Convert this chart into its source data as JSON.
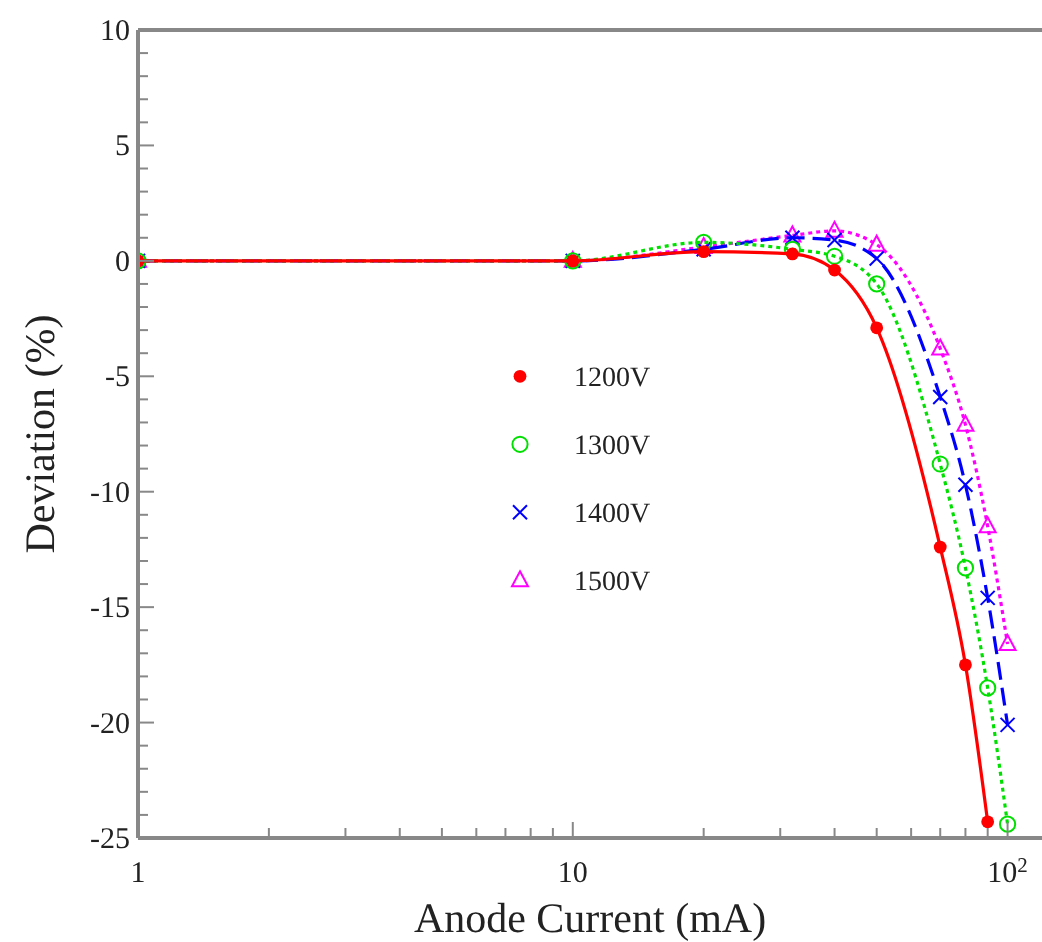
{
  "chart_data": {
    "type": "line",
    "xlabel": "Anode Current (mA)",
    "ylabel": "Deviation (%)",
    "log": "x",
    "xlim": [
      1,
      120
    ],
    "ylim": [
      -25,
      10
    ],
    "xticks": [
      1,
      {
        "value": 2,
        "label": null
      },
      {
        "value": 3,
        "label": null
      },
      {
        "value": 4,
        "label": null
      },
      {
        "value": 5,
        "label": null
      },
      {
        "value": 6,
        "label": null
      },
      {
        "value": 7,
        "label": null
      },
      {
        "value": 8,
        "label": null
      },
      {
        "value": 9,
        "label": null
      },
      10,
      {
        "value": 20,
        "label": null
      },
      {
        "value": 30,
        "label": null
      },
      {
        "value": 40,
        "label": null
      },
      {
        "value": 50,
        "label": null
      },
      {
        "value": 60,
        "label": null
      },
      {
        "value": 70,
        "label": null
      },
      {
        "value": 80,
        "label": null
      },
      {
        "value": 90,
        "label": null
      },
      {
        "value": 100,
        "label": "10$^{2}$"
      }
    ],
    "yticks": [
      -25,
      {
        "value": -24,
        "label": null
      },
      {
        "value": -23,
        "label": null
      },
      {
        "value": -22,
        "label": null
      },
      {
        "value": -21,
        "label": null
      },
      -20,
      {
        "value": -19,
        "label": null
      },
      {
        "value": -18,
        "label": null
      },
      {
        "value": -17,
        "label": null
      },
      {
        "value": -16,
        "label": null
      },
      -15,
      {
        "value": -14,
        "label": null
      },
      {
        "value": -13,
        "label": null
      },
      {
        "value": -12,
        "label": null
      },
      {
        "value": -11,
        "label": null
      },
      -10,
      {
        "value": -9,
        "label": null
      },
      {
        "value": -8,
        "label": null
      },
      {
        "value": -7,
        "label": null
      },
      {
        "value": -6,
        "label": null
      },
      -5,
      {
        "value": -4,
        "label": null
      },
      {
        "value": -3,
        "label": null
      },
      {
        "value": -2,
        "label": null
      },
      {
        "value": -1,
        "label": null
      },
      0,
      {
        "value": 1,
        "label": null
      },
      {
        "value": 2,
        "label": null
      },
      {
        "value": 3,
        "label": null
      },
      {
        "value": 4,
        "label": null
      },
      5,
      {
        "value": 6,
        "label": null
      },
      {
        "value": 7,
        "label": null
      },
      {
        "value": 8,
        "label": null
      },
      {
        "value": 9,
        "label": null
      },
      10
    ],
    "grid": false,
    "legend": "left",
    "series": [
      {
        "name": "1200V",
        "color": "#ff0000",
        "marker": "circle",
        "line_style": "solid",
        "x": [
          1,
          10,
          20,
          32,
          40,
          50,
          70,
          80,
          90
        ],
        "values": [
          0,
          0,
          0.4,
          0.3,
          -0.4,
          -2.9,
          -12.4,
          -17.5,
          -24.3
        ]
      },
      {
        "name": "1300V",
        "color": "#00e000",
        "marker": "circle-open",
        "line_style": "dotted",
        "x": [
          1,
          10,
          20,
          32,
          40,
          50,
          70,
          80,
          90,
          100
        ],
        "values": [
          0,
          0,
          0.8,
          0.5,
          0.2,
          -1.0,
          -8.8,
          -13.3,
          -18.5,
          -24.4
        ]
      },
      {
        "name": "1400V",
        "color": "#0000ff",
        "marker": "cross",
        "line_style": "dashed",
        "x": [
          1,
          10,
          20,
          32,
          40,
          50,
          70,
          80,
          90,
          100
        ],
        "values": [
          0,
          0,
          0.5,
          1.0,
          0.9,
          0.1,
          -5.9,
          -9.7,
          -14.6,
          -20.1
        ]
      },
      {
        "name": "1500V",
        "color": "#ff00ff",
        "marker": "triangle",
        "line_style": "dotted",
        "x": [
          1,
          10,
          20,
          32,
          40,
          50,
          70,
          80,
          90,
          100
        ],
        "values": [
          0,
          0,
          0.6,
          1.1,
          1.3,
          0.7,
          -3.8,
          -7.1,
          -11.5,
          -16.6
        ]
      }
    ]
  }
}
